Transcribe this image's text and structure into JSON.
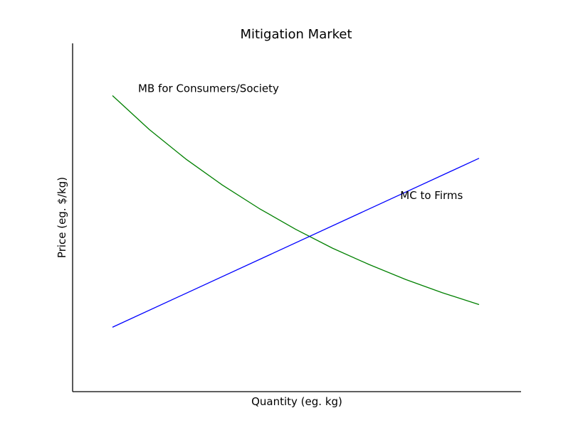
{
  "chart_data": {
    "type": "line",
    "title": "Mitigation Market",
    "xlabel": "Quantity (eg. kg)",
    "ylabel": "Price (eg. $/kg)",
    "xlim": [
      0,
      100
    ],
    "ylim": [
      0,
      100
    ],
    "grid": false,
    "series": [
      {
        "label": "MB for Consumers/Society",
        "color": "#008000",
        "x": [
          0,
          10,
          20,
          30,
          40,
          50,
          60,
          70,
          80,
          90,
          100
        ],
        "y": [
          85,
          75.3,
          66.8,
          59.3,
          52.6,
          46.6,
          41.2,
          36.5,
          32.2,
          28.4,
          25
        ]
      },
      {
        "label": "MC to Firms",
        "color": "#0000ff",
        "x": [
          0,
          100
        ],
        "y": [
          18.5,
          67
        ]
      }
    ],
    "annotations": [
      {
        "text": "MB for Consumers/Society",
        "x": 7,
        "y": 86
      },
      {
        "text": "MC to Firms",
        "x": 78.5,
        "y": 55.3
      }
    ]
  }
}
